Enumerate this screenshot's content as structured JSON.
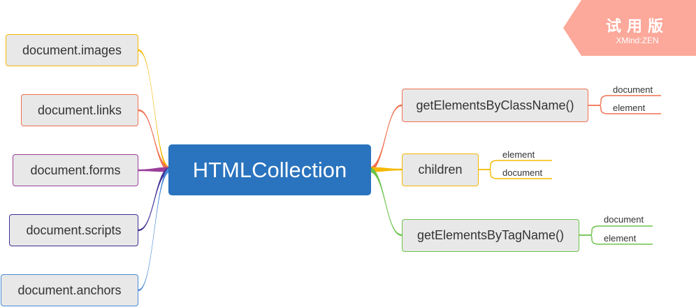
{
  "center": {
    "label": "HTMLCollection"
  },
  "left_nodes": [
    {
      "label": "document.images",
      "color": "#f5b800"
    },
    {
      "label": "document.links",
      "color": "#f07050"
    },
    {
      "label": "document.forms",
      "color": "#9a3f9a"
    },
    {
      "label": "document.scripts",
      "color": "#3d2f94"
    },
    {
      "label": "document.anchors",
      "color": "#4a8ad8"
    }
  ],
  "right_nodes": [
    {
      "label": "getElementsByClassName()",
      "color": "#f07050",
      "children": [
        "document",
        "element"
      ]
    },
    {
      "label": "children",
      "color": "#f5b800",
      "children": [
        "element",
        "document"
      ]
    },
    {
      "label": "getElementsByTagName()",
      "color": "#6cc24a",
      "children": [
        "document",
        "element"
      ]
    }
  ],
  "watermark": {
    "title": "试用版",
    "subtitle": "XMind:ZEN",
    "color": "#fca89a"
  }
}
